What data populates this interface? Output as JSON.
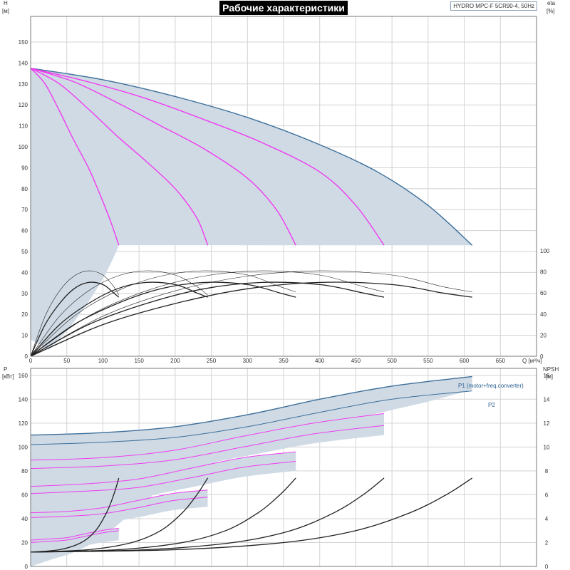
{
  "chart_data": [
    {
      "type": "line",
      "title": "Рабочие характеристики",
      "model": "HYDRO MPC-F 5CR90-4, 50Hz",
      "xlabel": "Q [м³/ч]",
      "ylabel_left_name": "H",
      "ylabel_left_unit": "[м]",
      "ylabel_right_name": "eta",
      "ylabel_right_unit": "[%]",
      "xlim": [
        0,
        700
      ],
      "ylim_left": [
        0,
        160
      ],
      "ylim_right": [
        0,
        100
      ],
      "xticks": [
        "0",
        "50",
        "100",
        "150",
        "200",
        "250",
        "300",
        "350",
        "400",
        "450",
        "500",
        "550",
        "600",
        "650"
      ],
      "yticks_left": [
        "0",
        "10",
        "20",
        "30",
        "40",
        "50",
        "60",
        "70",
        "80",
        "90",
        "100",
        "110",
        "120",
        "130",
        "140",
        "150"
      ],
      "yticks_right": [
        "0",
        "20",
        "40",
        "60",
        "80",
        "100"
      ],
      "head_curves": [
        {
          "points": [
            [
              0,
              137.5
            ],
            [
              20,
              130
            ],
            [
              40,
              117
            ],
            [
              60,
              103
            ],
            [
              80,
              90
            ],
            [
              95,
              78
            ],
            [
              110,
              65
            ],
            [
              122,
              53
            ]
          ]
        },
        {
          "points": [
            [
              0,
              137.5
            ],
            [
              40,
              130
            ],
            [
              80,
              118
            ],
            [
              120,
              105
            ],
            [
              160,
              93
            ],
            [
              200,
              80
            ],
            [
              230,
              66
            ],
            [
              245,
              53
            ]
          ]
        },
        {
          "points": [
            [
              0,
              137.5
            ],
            [
              60,
              131
            ],
            [
              120,
              121
            ],
            [
              180,
              110
            ],
            [
              240,
              99
            ],
            [
              300,
              85
            ],
            [
              340,
              70
            ],
            [
              367,
              53
            ]
          ]
        },
        {
          "points": [
            [
              0,
              137.5
            ],
            [
              80,
              131
            ],
            [
              160,
              123
            ],
            [
              240,
              113
            ],
            [
              320,
              102
            ],
            [
              400,
              88
            ],
            [
              450,
              72
            ],
            [
              489,
              53
            ]
          ]
        },
        {
          "points": [
            [
              0,
              137.5
            ],
            [
              100,
              132
            ],
            [
              200,
              124
            ],
            [
              300,
              114
            ],
            [
              400,
              101
            ],
            [
              480,
              88
            ],
            [
              550,
              72
            ],
            [
              611,
              53
            ]
          ]
        }
      ],
      "efficiency_curves": [
        {
          "kind": "thin",
          "points": [
            [
              0,
              0
            ],
            [
              20,
              38
            ],
            [
              40,
              62
            ],
            [
              60,
              76
            ],
            [
              80,
              81
            ],
            [
              100,
              77
            ],
            [
              115,
              66
            ],
            [
              122,
              58
            ]
          ]
        },
        {
          "kind": "thick",
          "points": [
            [
              0,
              0
            ],
            [
              20,
              30
            ],
            [
              40,
              50
            ],
            [
              60,
              64
            ],
            [
              80,
              70
            ],
            [
              100,
              68
            ],
            [
              115,
              60
            ],
            [
              122,
              56
            ]
          ]
        },
        {
          "kind": "thin",
          "points": [
            [
              0,
              0
            ],
            [
              40,
              38
            ],
            [
              80,
              62
            ],
            [
              120,
              76
            ],
            [
              160,
              81
            ],
            [
              200,
              77
            ],
            [
              230,
              66
            ],
            [
              245,
              58
            ]
          ]
        },
        {
          "kind": "thick",
          "points": [
            [
              0,
              0
            ],
            [
              40,
              30
            ],
            [
              80,
              50
            ],
            [
              120,
              64
            ],
            [
              160,
              70
            ],
            [
              200,
              68
            ],
            [
              230,
              60
            ],
            [
              245,
              56
            ]
          ]
        },
        {
          "kind": "thin",
          "points": [
            [
              0,
              0
            ],
            [
              60,
              38
            ],
            [
              120,
              62
            ],
            [
              180,
              76
            ],
            [
              240,
              81
            ],
            [
              300,
              77
            ],
            [
              345,
              66
            ],
            [
              367,
              61
            ]
          ]
        },
        {
          "kind": "thick",
          "points": [
            [
              0,
              0
            ],
            [
              60,
              30
            ],
            [
              120,
              50
            ],
            [
              180,
              64
            ],
            [
              240,
              70
            ],
            [
              300,
              68
            ],
            [
              345,
              60
            ],
            [
              367,
              56
            ]
          ]
        },
        {
          "kind": "thin",
          "points": [
            [
              0,
              0
            ],
            [
              80,
              38
            ],
            [
              160,
              62
            ],
            [
              240,
              76
            ],
            [
              320,
              81
            ],
            [
              400,
              77
            ],
            [
              460,
              66
            ],
            [
              489,
              61
            ]
          ]
        },
        {
          "kind": "thick",
          "points": [
            [
              0,
              0
            ],
            [
              80,
              30
            ],
            [
              160,
              50
            ],
            [
              240,
              64
            ],
            [
              320,
              70
            ],
            [
              400,
              68
            ],
            [
              460,
              60
            ],
            [
              489,
              56
            ]
          ]
        },
        {
          "kind": "thin",
          "points": [
            [
              0,
              0
            ],
            [
              100,
              38
            ],
            [
              200,
              62
            ],
            [
              300,
              76
            ],
            [
              400,
              81
            ],
            [
              500,
              77
            ],
            [
              570,
              66
            ],
            [
              611,
              61
            ]
          ]
        },
        {
          "kind": "thick",
          "points": [
            [
              0,
              0
            ],
            [
              100,
              30
            ],
            [
              200,
              50
            ],
            [
              300,
              64
            ],
            [
              400,
              70
            ],
            [
              500,
              68
            ],
            [
              570,
              60
            ],
            [
              611,
              56
            ]
          ]
        }
      ],
      "colors": {
        "envelope_fill": "#cfdae5",
        "envelope_edge": "#3c6f9a",
        "head_curve": "#f03cf0",
        "efficiency": "#222222",
        "grid": "#d3d3d3"
      }
    },
    {
      "type": "line",
      "xlim": [
        0,
        700
      ],
      "ylabel_left_name": "P",
      "ylabel_left_unit": "[кВт]",
      "ylabel_right_name": "NPSH",
      "ylabel_right_unit": "[м]",
      "ylim_left": [
        0,
        170
      ],
      "ylim_right": [
        0,
        17
      ],
      "yticks_left": [
        "0",
        "20",
        "40",
        "60",
        "80",
        "100",
        "120",
        "140",
        "160"
      ],
      "yticks_right": [
        "0",
        "2",
        "4",
        "6",
        "8",
        "10",
        "12",
        "14",
        "16"
      ],
      "legend_p1": "P1 (motor+freq.converter)",
      "legend_p2": "P2",
      "power_envelope_top": [
        [
          0,
          110
        ],
        [
          100,
          112
        ],
        [
          200,
          117
        ],
        [
          300,
          127
        ],
        [
          400,
          140
        ],
        [
          500,
          151
        ],
        [
          611,
          159
        ]
      ],
      "power_envelope_bottom": [
        [
          611,
          148
        ],
        [
          550,
          138
        ],
        [
          500,
          131
        ],
        [
          450,
          123
        ],
        [
          400,
          110
        ],
        [
          300,
          97
        ],
        [
          200,
          72
        ],
        [
          150,
          50
        ],
        [
          100,
          25
        ],
        [
          60,
          12
        ],
        [
          30,
          6
        ],
        [
          0,
          0
        ]
      ],
      "power_main": [
        {
          "name": "P1",
          "points": [
            [
              0,
              110
            ],
            [
              100,
              112
            ],
            [
              200,
              117
            ],
            [
              300,
              127
            ],
            [
              400,
              140
            ],
            [
              500,
              151
            ],
            [
              611,
              159
            ]
          ]
        },
        {
          "name": "P2",
          "points": [
            [
              0,
              102
            ],
            [
              100,
              104
            ],
            [
              200,
              108
            ],
            [
              300,
              117
            ],
            [
              400,
              129
            ],
            [
              500,
              140
            ],
            [
              611,
              147
            ]
          ]
        }
      ],
      "power_stages": [
        {
          "points": [
            [
              0,
              89
            ],
            [
              98,
              91
            ],
            [
              196,
              97
            ],
            [
              294,
              109
            ],
            [
              392,
              120
            ],
            [
              489,
              128
            ]
          ]
        },
        {
          "points": [
            [
              0,
              82
            ],
            [
              98,
              84
            ],
            [
              196,
              89
            ],
            [
              294,
              100
            ],
            [
              392,
              111
            ],
            [
              489,
              118
            ]
          ]
        },
        {
          "points": [
            [
              0,
              67
            ],
            [
              73,
              69
            ],
            [
              147,
              73
            ],
            [
              220,
              82
            ],
            [
              294,
              91
            ],
            [
              367,
              96
            ]
          ]
        },
        {
          "points": [
            [
              0,
              61
            ],
            [
              73,
              63
            ],
            [
              147,
              66
            ],
            [
              220,
              74
            ],
            [
              294,
              83
            ],
            [
              367,
              88
            ]
          ]
        },
        {
          "points": [
            [
              0,
              45
            ],
            [
              49,
              46
            ],
            [
              98,
              49
            ],
            [
              147,
              55
            ],
            [
              196,
              61
            ],
            [
              245,
              64
            ]
          ]
        },
        {
          "points": [
            [
              0,
              41
            ],
            [
              49,
              42
            ],
            [
              98,
              44
            ],
            [
              147,
              49
            ],
            [
              196,
              55
            ],
            [
              245,
              58
            ]
          ]
        },
        {
          "points": [
            [
              0,
              22
            ],
            [
              24,
              23
            ],
            [
              49,
              24
            ],
            [
              73,
              27
            ],
            [
              98,
              30
            ],
            [
              122,
              32
            ]
          ]
        },
        {
          "points": [
            [
              0,
              20
            ],
            [
              24,
              21
            ],
            [
              49,
              22
            ],
            [
              73,
              25
            ],
            [
              98,
              28
            ],
            [
              122,
              30
            ]
          ]
        }
      ],
      "npsh_curves": [
        {
          "points": [
            [
              0,
              1.2
            ],
            [
              40,
              1.4
            ],
            [
              70,
              2.0
            ],
            [
              90,
              3.0
            ],
            [
              105,
              4.5
            ],
            [
              115,
              6.0
            ],
            [
              122,
              7.4
            ]
          ]
        },
        {
          "points": [
            [
              0,
              1.2
            ],
            [
              80,
              1.4
            ],
            [
              140,
              2.0
            ],
            [
              180,
              3.0
            ],
            [
              210,
              4.5
            ],
            [
              230,
              6.0
            ],
            [
              245,
              7.4
            ]
          ]
        },
        {
          "points": [
            [
              0,
              1.2
            ],
            [
              120,
              1.4
            ],
            [
              210,
              2.0
            ],
            [
              270,
              3.0
            ],
            [
              315,
              4.5
            ],
            [
              345,
              6.0
            ],
            [
              367,
              7.4
            ]
          ]
        },
        {
          "points": [
            [
              0,
              1.2
            ],
            [
              160,
              1.4
            ],
            [
              280,
              2.0
            ],
            [
              360,
              3.0
            ],
            [
              420,
              4.5
            ],
            [
              460,
              6.0
            ],
            [
              489,
              7.4
            ]
          ]
        },
        {
          "points": [
            [
              0,
              1.2
            ],
            [
              200,
              1.4
            ],
            [
              350,
              2.0
            ],
            [
              450,
              3.0
            ],
            [
              525,
              4.5
            ],
            [
              575,
              6.0
            ],
            [
              611,
              7.4
            ]
          ]
        }
      ],
      "colors": {
        "envelope_fill": "#cfdae5",
        "main_line": "#3c6f9a",
        "stage_line": "#f03cf0",
        "npsh": "#222222"
      }
    }
  ]
}
